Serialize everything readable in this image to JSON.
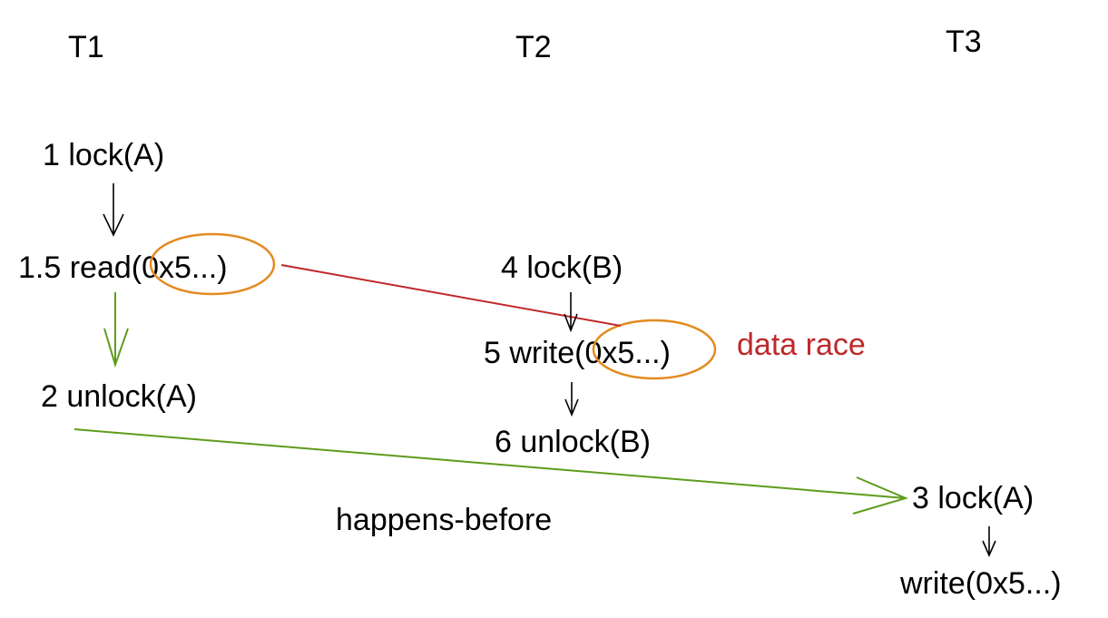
{
  "colors": {
    "text": "#000000",
    "program_order_arrow": "#000000",
    "happens_before_arrow": "#5e9c1c",
    "race_line": "#c0282b",
    "race_label": "#c0282b",
    "highlight_ellipse": "#e38a1e"
  },
  "threads": [
    {
      "id": "T1",
      "label": "T1"
    },
    {
      "id": "T2",
      "label": "T2"
    },
    {
      "id": "T3",
      "label": "T3"
    }
  ],
  "events": {
    "t1_lock_a": "1 lock(A)",
    "t1_read_prefix": "1.5 read",
    "t1_read_addr": "(0x5...)",
    "t1_unlock_a": "2 unlock(A)",
    "t2_lock_b": "4 lock(B)",
    "t2_write_prefix": "5 write",
    "t2_write_addr": "(0x5...)",
    "t2_unlock_b": "6 unlock(B)",
    "t3_lock_a": "3 lock(A)",
    "t3_write": "write(0x5...)"
  },
  "annotations": {
    "data_race": "data race",
    "happens_before": "happens-before"
  }
}
